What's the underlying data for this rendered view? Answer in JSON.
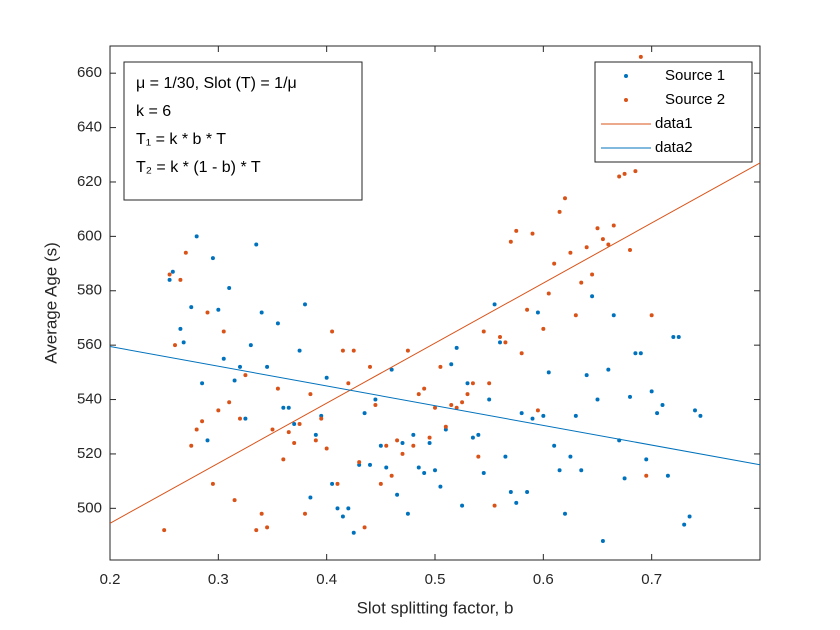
{
  "chart_data": {
    "type": "scatter",
    "x_label": "Slot splitting factor, b",
    "y_label": "Average Age (s)",
    "xlim": [
      0.2,
      0.8
    ],
    "ylim": [
      481,
      670
    ],
    "xticks": [
      0.2,
      0.3,
      0.4,
      0.5,
      0.6,
      0.7
    ],
    "yticks": [
      500,
      520,
      540,
      560,
      580,
      600,
      620,
      640,
      660
    ],
    "annotation": [
      "μ = 1/30, Slot (T) = 1/μ",
      "k = 6",
      "T₁ = k * b * T",
      "T₂ = k * (1 - b) * T"
    ],
    "legend_position": "upper-right",
    "series": [
      {
        "name": "Source 1",
        "color": "#0072bd",
        "mode": "markers",
        "x": [
          0.255,
          0.258,
          0.265,
          0.268,
          0.275,
          0.28,
          0.285,
          0.29,
          0.295,
          0.3,
          0.305,
          0.31,
          0.315,
          0.32,
          0.325,
          0.33,
          0.335,
          0.34,
          0.345,
          0.355,
          0.36,
          0.365,
          0.37,
          0.375,
          0.38,
          0.385,
          0.39,
          0.395,
          0.4,
          0.405,
          0.41,
          0.415,
          0.42,
          0.425,
          0.43,
          0.435,
          0.44,
          0.445,
          0.45,
          0.455,
          0.46,
          0.465,
          0.47,
          0.475,
          0.48,
          0.485,
          0.49,
          0.495,
          0.5,
          0.505,
          0.51,
          0.515,
          0.52,
          0.525,
          0.53,
          0.535,
          0.54,
          0.545,
          0.55,
          0.555,
          0.56,
          0.565,
          0.57,
          0.575,
          0.58,
          0.585,
          0.59,
          0.595,
          0.6,
          0.605,
          0.61,
          0.615,
          0.62,
          0.625,
          0.63,
          0.635,
          0.64,
          0.645,
          0.65,
          0.655,
          0.66,
          0.665,
          0.67,
          0.675,
          0.68,
          0.685,
          0.69,
          0.695,
          0.7,
          0.705,
          0.71,
          0.715,
          0.72,
          0.725,
          0.73,
          0.735,
          0.74,
          0.745
        ],
        "values": [
          584,
          587,
          566,
          561,
          574,
          600,
          546,
          525,
          592,
          573,
          555,
          581,
          547,
          552,
          533,
          560,
          597,
          572,
          552,
          568,
          537,
          537,
          531,
          558,
          575,
          504,
          527,
          534,
          548,
          509,
          500,
          497,
          500,
          491,
          516,
          535,
          516,
          540,
          523,
          515,
          551,
          505,
          524,
          498,
          527,
          515,
          513,
          524,
          514,
          508,
          529,
          553,
          559,
          501,
          546,
          526,
          527,
          513,
          540,
          575,
          561,
          519,
          506,
          502,
          535,
          506,
          533,
          572,
          534,
          550,
          523,
          514,
          498,
          519,
          534,
          514,
          549,
          578,
          540,
          488,
          551,
          571,
          525,
          511,
          541,
          557,
          557,
          518,
          543,
          535,
          538,
          512,
          563,
          563,
          494,
          497,
          536,
          534
        ]
      },
      {
        "name": "Source 2",
        "color": "#d95319",
        "mode": "markers",
        "x": [
          0.25,
          0.255,
          0.26,
          0.265,
          0.27,
          0.275,
          0.28,
          0.285,
          0.29,
          0.295,
          0.3,
          0.305,
          0.31,
          0.315,
          0.32,
          0.325,
          0.335,
          0.34,
          0.345,
          0.35,
          0.355,
          0.36,
          0.365,
          0.37,
          0.375,
          0.38,
          0.385,
          0.39,
          0.395,
          0.4,
          0.405,
          0.41,
          0.415,
          0.42,
          0.425,
          0.43,
          0.435,
          0.44,
          0.445,
          0.45,
          0.455,
          0.46,
          0.465,
          0.47,
          0.475,
          0.48,
          0.485,
          0.49,
          0.495,
          0.5,
          0.505,
          0.51,
          0.515,
          0.52,
          0.525,
          0.53,
          0.535,
          0.54,
          0.545,
          0.55,
          0.555,
          0.56,
          0.565,
          0.57,
          0.575,
          0.58,
          0.585,
          0.59,
          0.595,
          0.6,
          0.605,
          0.61,
          0.615,
          0.62,
          0.625,
          0.63,
          0.635,
          0.64,
          0.645,
          0.65,
          0.655,
          0.66,
          0.665,
          0.67,
          0.675,
          0.68,
          0.685,
          0.69,
          0.695,
          0.7
        ],
        "values": [
          492,
          586,
          560,
          584,
          594,
          523,
          529,
          532,
          572,
          509,
          536,
          565,
          539,
          503,
          533,
          549,
          492,
          498,
          493,
          529,
          544,
          518,
          528,
          524,
          531,
          498,
          542,
          525,
          533,
          522,
          565,
          509,
          558,
          546,
          558,
          517,
          493,
          552,
          538,
          509,
          523,
          512,
          525,
          520,
          558,
          523,
          542,
          544,
          526,
          537,
          552,
          530,
          538,
          537,
          539,
          542,
          546,
          519,
          565,
          546,
          501,
          563,
          561,
          598,
          602,
          557,
          573,
          601,
          536,
          566,
          579,
          590,
          609,
          614,
          594,
          571,
          583,
          596,
          586,
          603,
          599,
          597,
          604,
          622,
          623,
          595,
          624,
          666,
          512,
          571
        ]
      },
      {
        "name": "data1",
        "color": "#d95319",
        "mode": "line",
        "x": [
          0.2,
          0.8
        ],
        "values": [
          494.5,
          627
        ]
      },
      {
        "name": "data2",
        "color": "#0072bd",
        "mode": "line",
        "x": [
          0.2,
          0.8
        ],
        "values": [
          559.5,
          516
        ]
      }
    ]
  }
}
